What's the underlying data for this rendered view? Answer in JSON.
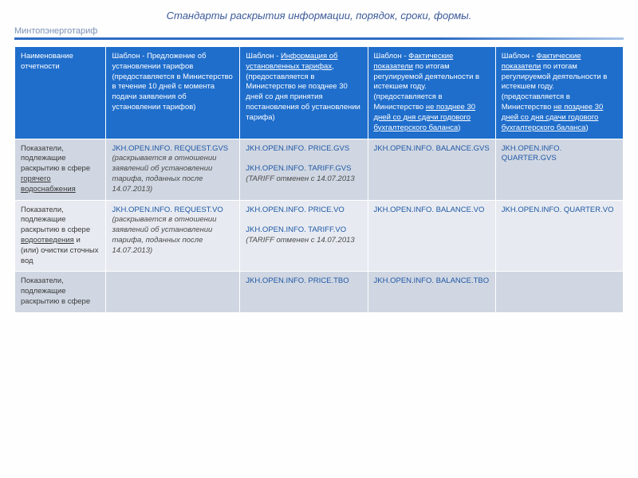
{
  "title": "Стандарты раскрытия информации, порядок, сроки, формы.",
  "subtitle": "Минтопэнерготариф",
  "headers": {
    "c0": "Наименование отчетности",
    "c1_pre": "Шаблон - Предложение об установлении тарифов (предоставляется в Министерство в течение 10 дней с момента подачи заявления об установлении тарифов)",
    "c2_pre": "Шаблон -",
    "c2_u": "Информация об установленных тарифах",
    "c2_post": ", (предоставляется в Министерство не позднее 30 дней со дня принятия постановления об установлении тарифа)",
    "c3_pre": "Шаблон -",
    "c3_u": "Фактические показатели",
    "c3_mid": " по итогам регулируемой деятельности в истекшем году. (предоставляется в Министерство ",
    "c3_u2": "не позднее 30 дней со дня сдачи годового бухгалтерского баланса",
    "c3_post": ")",
    "c4_pre": "Шаблон -",
    "c4_u": "Фактические показатели",
    "c4_mid": " по итогам регулируемой деятельности в истекшем году. (предоставляется в Министерство ",
    "c4_u2": "не позднее 30 дней со дня сдачи годового бухгалтерского баланса",
    "c4_post": ")"
  },
  "rows": [
    {
      "cls": "row-a",
      "label_pre": "Показатели, подлежащие раскрытию в сфере ",
      "label_u": "горячего водоснабжения",
      "label_post": "",
      "c1_code": "JKH.OPEN.INFO. REQUEST.GVS",
      "c1_note": " (раскрывается в отношении заявлений об установлении тарифа, поданных после 14.07.2013)",
      "c2_code1": "JKH.OPEN.INFO. PRICE.GVS",
      "c2_code2": "JKH.OPEN.INFO. TARIFF.GVS",
      "c2_note": " (TARIFF отменен с 14.07.2013",
      "c3_code": "JKH.OPEN.INFO. BALANCE.GVS",
      "c4_code": "JKH.OPEN.INFO. QUARTER.GVS"
    },
    {
      "cls": "row-b",
      "label_pre": "Показатели, подлежащие раскрытию в сфере ",
      "label_u": "водоотведения",
      "label_post": " и (или) очистки сточных вод",
      "c1_code": "JKH.OPEN.INFO. REQUEST.VO",
      "c1_note": " (раскрывается в отношении заявлений об установлении тарифа, поданных после 14.07.2013)",
      "c2_code1": "JKH.OPEN.INFO. PRICE.VO",
      "c2_code2": "JKH.OPEN.INFO. TARIFF.VO",
      "c2_note": " (TARIFF отменен с 14.07.2013",
      "c3_code": "JKH.OPEN.INFO. BALANCE.VO",
      "c4_code": "JKH.OPEN.INFO. QUARTER.VO"
    },
    {
      "cls": "row-a",
      "label_pre": "Показатели, подлежащие раскрытию в сфере",
      "label_u": "",
      "label_post": "",
      "c1_code": "",
      "c1_note": "",
      "c2_code1": "JKH.OPEN.INFO. PRICE.TBO",
      "c2_code2": "",
      "c2_note": "",
      "c3_code": "JKH.OPEN.INFO. BALANCE.TBO",
      "c4_code": ""
    }
  ]
}
